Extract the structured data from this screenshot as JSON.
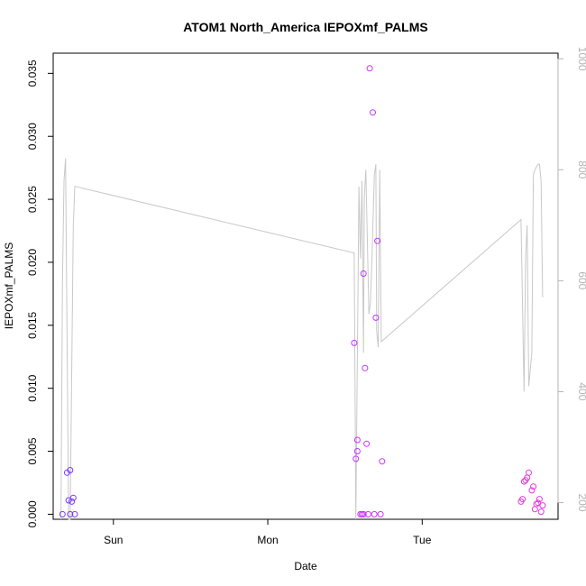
{
  "chart_data": {
    "type": "scatter",
    "title": "ATOM1 North_America IEPOXmf_PALMS",
    "xlabel": "Date",
    "ylabel": "IEPOXmf_PALMS",
    "x_ticks": [
      {
        "label": "Sun",
        "value": 0.0
      },
      {
        "label": "Mon",
        "value": 1.0
      },
      {
        "label": "Tue",
        "value": 2.0
      }
    ],
    "xlim": [
      -0.39,
      2.88
    ],
    "ylim": [
      -0.0004,
      0.0366
    ],
    "y_ticks": [
      {
        "label": "0.000",
        "value": 0.0
      },
      {
        "label": "0.005",
        "value": 0.005
      },
      {
        "label": "0.010",
        "value": 0.01
      },
      {
        "label": "0.015",
        "value": 0.015
      },
      {
        "label": "0.020",
        "value": 0.02
      },
      {
        "label": "0.025",
        "value": 0.025
      },
      {
        "label": "0.030",
        "value": 0.03
      },
      {
        "label": "0.035",
        "value": 0.035
      }
    ],
    "y2_ticks": [
      {
        "label": "200",
        "value": 200
      },
      {
        "label": "400",
        "value": 400
      },
      {
        "label": "600",
        "value": 600
      },
      {
        "label": "800",
        "value": 800
      },
      {
        "label": "1000",
        "value": 1000
      }
    ],
    "y2lim": [
      1010,
      170
    ],
    "grid": false,
    "colors": {
      "secondary_line": "#c8c8c8",
      "secondary_axis_text": "#b3b3b3",
      "axis": "#000000",
      "point_colors": [
        "#7a3cff",
        "#c832ff",
        "#e23adc"
      ]
    },
    "series": [
      {
        "color": "#7a3cff",
        "points": [
          [
            -0.33,
            0.0
          ],
          [
            -0.3,
            0.0033
          ],
          [
            -0.29,
            0.0011
          ],
          [
            -0.28,
            0.0
          ],
          [
            -0.28,
            0.0035
          ],
          [
            -0.27,
            0.001
          ],
          [
            -0.26,
            0.0013
          ],
          [
            -0.25,
            0.0
          ]
        ]
      },
      {
        "color": "#c832ff",
        "points": [
          [
            1.56,
            0.0136
          ],
          [
            1.57,
            0.0044
          ],
          [
            1.58,
            0.005
          ],
          [
            1.58,
            0.0059
          ],
          [
            1.6,
            0.0
          ],
          [
            1.61,
            0.0
          ],
          [
            1.62,
            0.0
          ],
          [
            1.62,
            0.0191
          ],
          [
            1.63,
            0.0116
          ],
          [
            1.64,
            0.0056
          ],
          [
            1.65,
            0.0
          ],
          [
            1.66,
            0.0354
          ],
          [
            1.68,
            0.0319
          ],
          [
            1.69,
            0.0
          ],
          [
            1.7,
            0.0156
          ],
          [
            1.71,
            0.0217
          ],
          [
            1.73,
            0.0
          ],
          [
            1.74,
            0.0042
          ]
        ]
      },
      {
        "color": "#e23adc",
        "points": [
          [
            2.64,
            0.001
          ],
          [
            2.65,
            0.0012
          ],
          [
            2.66,
            0.0026
          ],
          [
            2.67,
            0.0027
          ],
          [
            2.68,
            0.0029
          ],
          [
            2.69,
            0.0033
          ],
          [
            2.71,
            0.0019
          ],
          [
            2.72,
            0.0022
          ],
          [
            2.73,
            0.0004
          ],
          [
            2.74,
            0.0008
          ],
          [
            2.75,
            0.0009
          ],
          [
            2.76,
            0.0012
          ],
          [
            2.77,
            0.0002
          ],
          [
            2.78,
            0.0007
          ]
        ]
      }
    ],
    "secondary_line": {
      "axis": "right",
      "points": [
        [
          -0.34,
          170
        ],
        [
          -0.33,
          600
        ],
        [
          -0.32,
          780
        ],
        [
          -0.31,
          820
        ],
        [
          -0.29,
          170
        ],
        [
          -0.28,
          170
        ],
        [
          -0.26,
          700
        ],
        [
          -0.25,
          770
        ],
        [
          1.56,
          650
        ],
        [
          1.57,
          170
        ],
        [
          1.585,
          600
        ],
        [
          1.59,
          770
        ],
        [
          1.6,
          640
        ],
        [
          1.61,
          780
        ],
        [
          1.62,
          470
        ],
        [
          1.625,
          750
        ],
        [
          1.635,
          800
        ],
        [
          1.645,
          670
        ],
        [
          1.655,
          540
        ],
        [
          1.665,
          560
        ],
        [
          1.675,
          640
        ],
        [
          1.69,
          790
        ],
        [
          1.7,
          810
        ],
        [
          1.705,
          510
        ],
        [
          1.715,
          480
        ],
        [
          1.725,
          800
        ],
        [
          1.735,
          490
        ],
        [
          2.64,
          710
        ],
        [
          2.66,
          400
        ],
        [
          2.67,
          640
        ],
        [
          2.68,
          700
        ],
        [
          2.69,
          410
        ],
        [
          2.7,
          440
        ],
        [
          2.71,
          470
        ],
        [
          2.72,
          790
        ],
        [
          2.73,
          800
        ],
        [
          2.75,
          810
        ],
        [
          2.76,
          810
        ],
        [
          2.77,
          780
        ],
        [
          2.78,
          570
        ]
      ]
    }
  }
}
